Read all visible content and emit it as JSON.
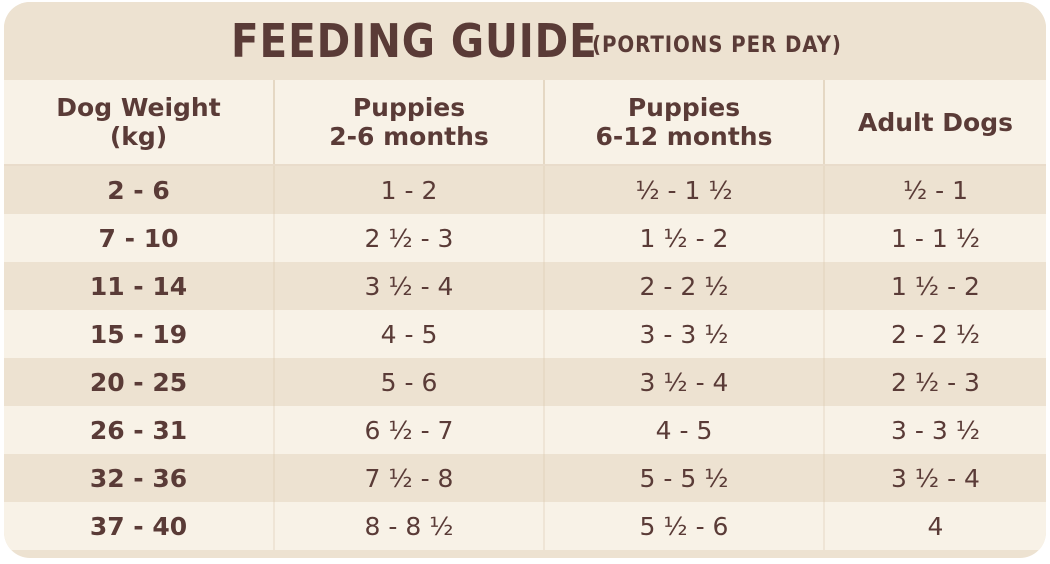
{
  "title": {
    "main": "FEEDING GUIDE",
    "sub": "(PORTIONS PER DAY)"
  },
  "columns": [
    {
      "line1": "Dog Weight",
      "line2": "(kg)"
    },
    {
      "line1": "Puppies",
      "line2": "2-6 months"
    },
    {
      "line1": "Puppies",
      "line2": "6-12 months"
    },
    {
      "line1": "Adult Dogs",
      "line2": ""
    }
  ],
  "rows": [
    [
      "2 - 6",
      "1 - 2",
      "½ - 1 ½",
      "½ - 1"
    ],
    [
      "7 - 10",
      "2 ½ - 3",
      "1 ½ - 2",
      "1 - 1 ½"
    ],
    [
      "11 - 14",
      "3 ½ - 4",
      "2 - 2 ½",
      "1 ½ - 2"
    ],
    [
      "15 - 19",
      "4 - 5",
      "3 - 3 ½",
      "2 - 2 ½"
    ],
    [
      "20 - 25",
      "5 - 6",
      "3 ½ - 4",
      "2 ½ - 3"
    ],
    [
      "26 - 31",
      "6 ½ - 7",
      "4 - 5",
      "3 - 3 ½"
    ],
    [
      "32 - 36",
      "7 ½ - 8",
      "5 - 5 ½",
      "3 ½ - 4"
    ],
    [
      "37 - 40",
      "8 - 8 ½",
      "5 ½ - 6",
      "4"
    ]
  ],
  "colors": {
    "text": "#5a3b37",
    "band_dark": "#ede2d1",
    "band_light": "#f8f2e7"
  }
}
